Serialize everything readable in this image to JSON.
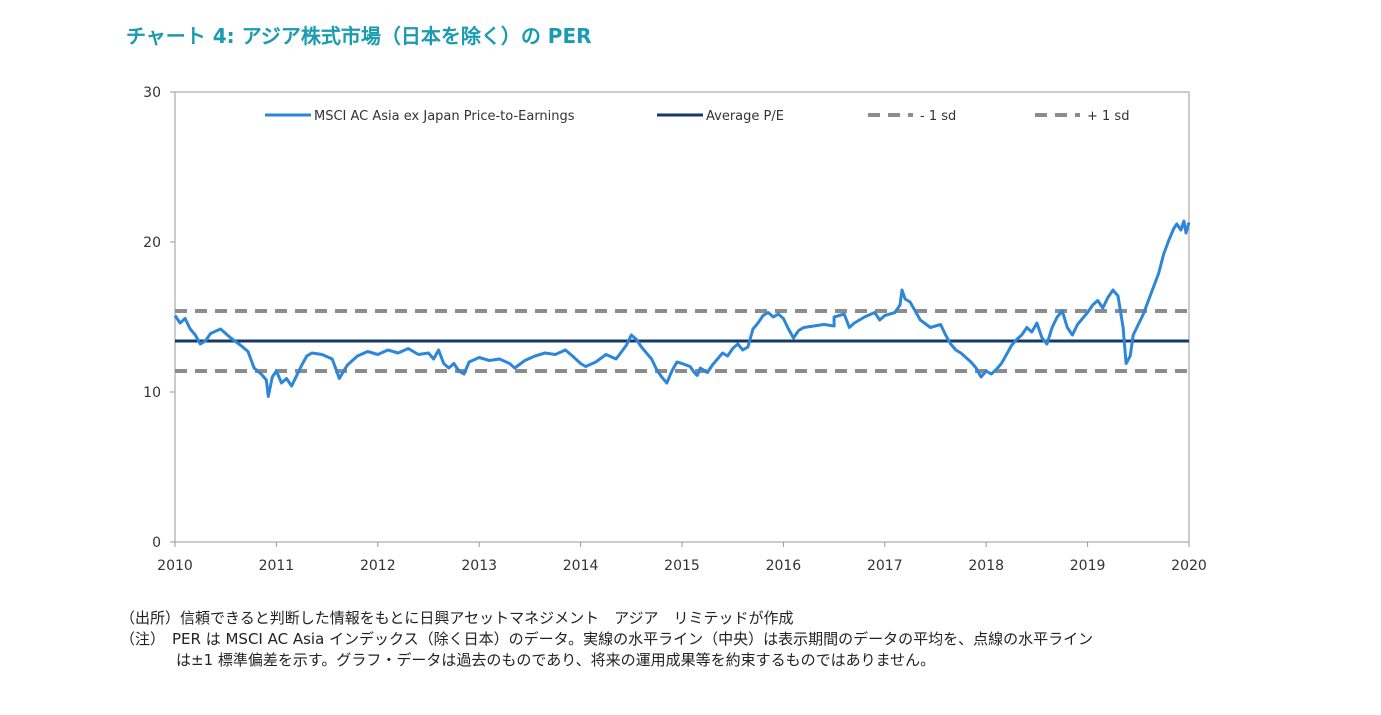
{
  "title": "チャート 4: アジア株式市場（日本を除く）の PER",
  "chart_data": {
    "type": "line",
    "xlim": [
      2010,
      2020
    ],
    "ylim": [
      0,
      30
    ],
    "x_ticks": [
      2010,
      2011,
      2012,
      2013,
      2014,
      2015,
      2016,
      2017,
      2018,
      2019,
      2020
    ],
    "y_ticks": [
      0,
      10,
      20,
      30
    ],
    "grid": false,
    "legend_position": "top",
    "colors": {
      "pe_line": "#2e86d8",
      "average": "#163a66",
      "sd": "#8c8c8c",
      "axis": "#9a9a9a"
    },
    "series": [
      {
        "name": "MSCI AC Asia ex Japan Price-to-Earnings",
        "style": "solid-light-blue",
        "points": [
          [
            2010.0,
            15.1
          ],
          [
            2010.05,
            14.6
          ],
          [
            2010.1,
            14.9
          ],
          [
            2010.15,
            14.2
          ],
          [
            2010.2,
            13.8
          ],
          [
            2010.25,
            13.2
          ],
          [
            2010.3,
            13.4
          ],
          [
            2010.35,
            13.9
          ],
          [
            2010.45,
            14.2
          ],
          [
            2010.55,
            13.6
          ],
          [
            2010.65,
            13.1
          ],
          [
            2010.72,
            12.7
          ],
          [
            2010.78,
            11.6
          ],
          [
            2010.85,
            11.2
          ],
          [
            2010.9,
            10.8
          ],
          [
            2010.92,
            9.7
          ],
          [
            2010.96,
            11.0
          ],
          [
            2011.0,
            11.4
          ],
          [
            2011.05,
            10.6
          ],
          [
            2011.1,
            10.9
          ],
          [
            2011.15,
            10.4
          ],
          [
            2011.2,
            11.1
          ],
          [
            2011.25,
            11.8
          ],
          [
            2011.3,
            12.4
          ],
          [
            2011.35,
            12.6
          ],
          [
            2011.45,
            12.5
          ],
          [
            2011.55,
            12.2
          ],
          [
            2011.6,
            11.3
          ],
          [
            2011.62,
            10.9
          ],
          [
            2011.7,
            11.8
          ],
          [
            2011.8,
            12.4
          ],
          [
            2011.9,
            12.7
          ],
          [
            2012.0,
            12.5
          ],
          [
            2012.1,
            12.8
          ],
          [
            2012.2,
            12.6
          ],
          [
            2012.3,
            12.9
          ],
          [
            2012.4,
            12.5
          ],
          [
            2012.5,
            12.6
          ],
          [
            2012.55,
            12.2
          ],
          [
            2012.6,
            12.8
          ],
          [
            2012.65,
            11.9
          ],
          [
            2012.7,
            11.6
          ],
          [
            2012.75,
            11.9
          ],
          [
            2012.8,
            11.4
          ],
          [
            2012.85,
            11.2
          ],
          [
            2012.9,
            12.0
          ],
          [
            2013.0,
            12.3
          ],
          [
            2013.1,
            12.1
          ],
          [
            2013.2,
            12.2
          ],
          [
            2013.3,
            11.9
          ],
          [
            2013.35,
            11.6
          ],
          [
            2013.45,
            12.1
          ],
          [
            2013.55,
            12.4
          ],
          [
            2013.65,
            12.6
          ],
          [
            2013.75,
            12.5
          ],
          [
            2013.85,
            12.8
          ],
          [
            2013.92,
            12.4
          ],
          [
            2014.0,
            11.9
          ],
          [
            2014.05,
            11.7
          ],
          [
            2014.15,
            12.0
          ],
          [
            2014.25,
            12.5
          ],
          [
            2014.35,
            12.2
          ],
          [
            2014.45,
            13.1
          ],
          [
            2014.5,
            13.8
          ],
          [
            2014.55,
            13.5
          ],
          [
            2014.6,
            13.0
          ],
          [
            2014.7,
            12.2
          ],
          [
            2014.75,
            11.5
          ],
          [
            2014.8,
            11.0
          ],
          [
            2014.85,
            10.6
          ],
          [
            2014.9,
            11.4
          ],
          [
            2014.95,
            12.0
          ],
          [
            2015.0,
            11.9
          ],
          [
            2015.08,
            11.7
          ],
          [
            2015.12,
            11.3
          ],
          [
            2015.15,
            11.1
          ],
          [
            2015.18,
            11.6
          ],
          [
            2015.25,
            11.3
          ],
          [
            2015.3,
            11.8
          ],
          [
            2015.35,
            12.2
          ],
          [
            2015.4,
            12.6
          ],
          [
            2015.45,
            12.4
          ],
          [
            2015.5,
            12.9
          ],
          [
            2015.55,
            13.2
          ],
          [
            2015.6,
            12.8
          ],
          [
            2015.65,
            13.0
          ],
          [
            2015.7,
            14.2
          ],
          [
            2015.75,
            14.6
          ],
          [
            2015.8,
            15.1
          ],
          [
            2015.85,
            15.3
          ],
          [
            2015.9,
            15.0
          ],
          [
            2015.95,
            15.2
          ],
          [
            2016.0,
            14.9
          ],
          [
            2016.05,
            14.2
          ],
          [
            2016.1,
            13.6
          ],
          [
            2016.15,
            14.1
          ],
          [
            2016.2,
            14.3
          ],
          [
            2016.3,
            14.4
          ],
          [
            2016.4,
            14.5
          ],
          [
            2016.5,
            14.4
          ],
          [
            2016.5,
            15.0
          ],
          [
            2016.6,
            15.2
          ],
          [
            2016.65,
            14.3
          ],
          [
            2016.7,
            14.6
          ],
          [
            2016.8,
            15.0
          ],
          [
            2016.9,
            15.3
          ],
          [
            2016.95,
            14.8
          ],
          [
            2017.0,
            15.1
          ],
          [
            2017.1,
            15.3
          ],
          [
            2017.15,
            15.8
          ],
          [
            2017.17,
            16.8
          ],
          [
            2017.2,
            16.2
          ],
          [
            2017.25,
            16.0
          ],
          [
            2017.3,
            15.4
          ],
          [
            2017.35,
            14.8
          ],
          [
            2017.45,
            14.3
          ],
          [
            2017.55,
            14.5
          ],
          [
            2017.6,
            13.8
          ],
          [
            2017.65,
            13.2
          ],
          [
            2017.7,
            12.8
          ],
          [
            2017.75,
            12.6
          ],
          [
            2017.8,
            12.3
          ],
          [
            2017.85,
            12.0
          ],
          [
            2017.9,
            11.6
          ],
          [
            2017.95,
            11.0
          ],
          [
            2018.0,
            11.4
          ],
          [
            2018.05,
            11.2
          ],
          [
            2018.1,
            11.5
          ],
          [
            2018.15,
            11.9
          ],
          [
            2018.2,
            12.5
          ],
          [
            2018.25,
            13.1
          ],
          [
            2018.3,
            13.5
          ],
          [
            2018.35,
            13.8
          ],
          [
            2018.4,
            14.3
          ],
          [
            2018.45,
            14.0
          ],
          [
            2018.5,
            14.6
          ],
          [
            2018.55,
            13.6
          ],
          [
            2018.6,
            13.2
          ],
          [
            2018.65,
            14.3
          ],
          [
            2018.7,
            15.0
          ],
          [
            2018.75,
            15.4
          ],
          [
            2018.8,
            14.3
          ],
          [
            2018.85,
            13.8
          ],
          [
            2018.9,
            14.5
          ],
          [
            2018.95,
            14.9
          ],
          [
            2019.0,
            15.3
          ],
          [
            2019.05,
            15.8
          ],
          [
            2019.1,
            16.1
          ],
          [
            2019.15,
            15.6
          ],
          [
            2019.2,
            16.3
          ],
          [
            2019.25,
            16.8
          ],
          [
            2019.3,
            16.4
          ],
          [
            2019.35,
            14.3
          ],
          [
            2019.38,
            11.9
          ],
          [
            2019.42,
            12.4
          ],
          [
            2019.45,
            13.8
          ],
          [
            2019.5,
            14.5
          ],
          [
            2019.55,
            15.2
          ],
          [
            2019.6,
            16.1
          ],
          [
            2019.65,
            17.0
          ],
          [
            2019.7,
            17.9
          ],
          [
            2019.75,
            19.2
          ],
          [
            2019.8,
            20.1
          ],
          [
            2019.85,
            20.9
          ],
          [
            2019.88,
            21.2
          ],
          [
            2019.92,
            20.8
          ],
          [
            2019.95,
            21.4
          ],
          [
            2019.97,
            20.6
          ],
          [
            2020.0,
            21.3
          ]
        ]
      },
      {
        "name": "Average P/E",
        "style": "solid-dark-blue",
        "value": 13.4
      },
      {
        "name": "- 1 sd",
        "style": "dashed-grey",
        "value": 11.4
      },
      {
        "name": "+ 1 sd",
        "style": "dashed-grey",
        "value": 15.4
      }
    ]
  },
  "notes": {
    "source_prefix": "（出所）",
    "source_text": "信頼できると判断した情報をもとに日興アセットマネジメント　アジア　リミテッドが作成",
    "note_prefix": "（注）",
    "note_line1": "PER は MSCI AC Asia インデックス（除く日本）のデータ。実線の水平ライン（中央）は表示期間のデータの平均を、点線の水平ライン",
    "note_line2": "は±1 標準偏差を示す。グラフ・データは過去のものであり、将来の運用成果等を約束するものではありません。"
  }
}
